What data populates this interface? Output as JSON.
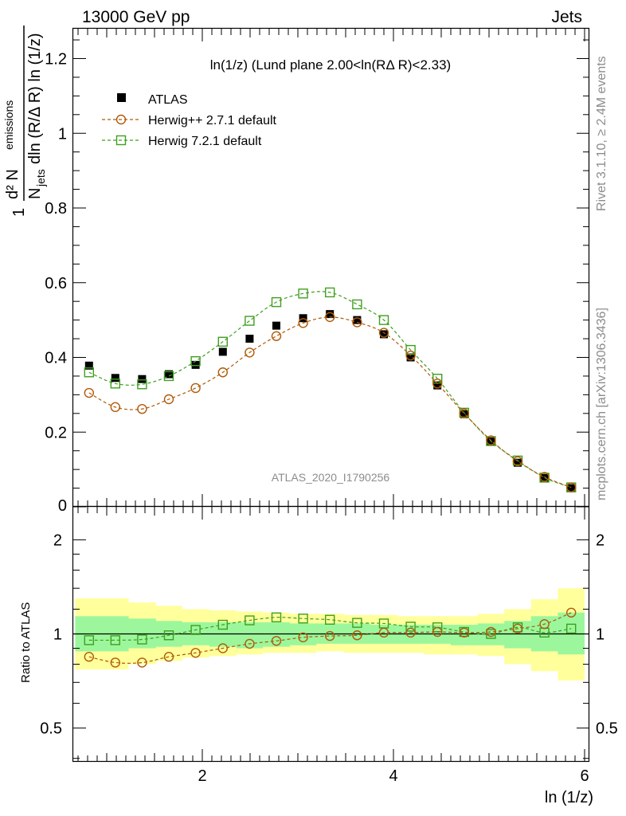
{
  "header": {
    "left": "13000 GeV pp",
    "right": "Jets"
  },
  "side_labels": {
    "rivet": "Rivet 3.1.10, ≥ 2.4M events",
    "mcplots": "mcplots.cern.ch [arXiv:1306.3436]"
  },
  "main_title": "ln(1/z) (Lund plane 2.00<ln(RΔ R)<2.33)",
  "watermark": "ATLAS_2020_I1790256",
  "ylabel_main": {
    "num": "d² N",
    "num_sub": "emissions",
    "one": "1",
    "den": "N",
    "den_sub": "jets",
    "den_rest": "dln (R/Δ R) ln (1/z)"
  },
  "ratio_ylabel": "Ratio to ATLAS",
  "xlabel": "ln (1/z)",
  "legend": [
    "ATLAS",
    "Herwig++ 2.7.1 default",
    "Herwig 7.2.1 default"
  ],
  "colors": {
    "atlas": "#000000",
    "herwigpp": "#b05a08",
    "herwig7": "#3f9f1f",
    "band_inner": "#9cf79c",
    "band_outer": "#ffff9c"
  },
  "chart_data": [
    {
      "type": "scatter",
      "panel": "main",
      "xlim": [
        0.65,
        6.05
      ],
      "ylim": [
        0,
        1.28
      ],
      "x_ticks": [
        2,
        4,
        6
      ],
      "y_ticks": [
        0.2,
        0.4,
        0.6,
        0.8,
        1,
        1.2
      ],
      "y_tick_labels": [
        "0.2",
        "0.4",
        "0.6",
        "0.8",
        "1",
        "1.2"
      ],
      "x_edges": [
        0.67,
        0.955,
        1.23,
        1.515,
        1.79,
        2.075,
        2.355,
        2.635,
        2.915,
        3.195,
        3.48,
        3.76,
        4.04,
        4.32,
        4.6,
        4.88,
        5.16,
        5.44,
        5.72,
        6.0
      ],
      "x": [
        0.815,
        1.09,
        1.37,
        1.65,
        1.93,
        2.215,
        2.495,
        2.775,
        3.055,
        3.335,
        3.62,
        3.9,
        4.18,
        4.46,
        4.74,
        5.02,
        5.3,
        5.58,
        5.86
      ],
      "series": [
        {
          "name": "ATLAS",
          "values": [
            0.378,
            0.345,
            0.342,
            0.355,
            0.38,
            0.415,
            0.45,
            0.485,
            0.505,
            0.516,
            0.5,
            0.462,
            0.4,
            0.325,
            0.248,
            0.175,
            0.118,
            0.077,
            0.05
          ]
        },
        {
          "name": "Herwig++ 2.7.1 default",
          "values": [
            0.305,
            0.267,
            0.262,
            0.288,
            0.318,
            0.36,
            0.413,
            0.457,
            0.492,
            0.508,
            0.494,
            0.466,
            0.405,
            0.33,
            0.25,
            0.178,
            0.122,
            0.08,
            0.052
          ]
        },
        {
          "name": "Herwig 7.2.1 default",
          "values": [
            0.36,
            0.33,
            0.328,
            0.35,
            0.39,
            0.442,
            0.498,
            0.548,
            0.571,
            0.574,
            0.542,
            0.5,
            0.42,
            0.343,
            0.252,
            0.176,
            0.124,
            0.078,
            0.052
          ]
        }
      ]
    },
    {
      "type": "line",
      "panel": "ratio",
      "ylim": [
        0.39,
        2.55
      ],
      "log_y": true,
      "y_ticks": [
        0.5,
        1,
        2
      ],
      "y_tick_labels": [
        "0.5",
        "1",
        "2"
      ],
      "xlabel": "ln (1/z)",
      "ylabel": "Ratio to ATLAS",
      "band_inner": {
        "lo": [
          0.88,
          0.88,
          0.9,
          0.91,
          0.92,
          0.91,
          0.9,
          0.91,
          0.92,
          0.93,
          0.93,
          0.93,
          0.93,
          0.93,
          0.92,
          0.92,
          0.9,
          0.88,
          0.86
        ],
        "hi": [
          1.14,
          1.14,
          1.12,
          1.1,
          1.09,
          1.09,
          1.09,
          1.09,
          1.08,
          1.08,
          1.08,
          1.07,
          1.07,
          1.07,
          1.07,
          1.08,
          1.1,
          1.14,
          1.17
        ]
      },
      "band_outer": {
        "lo": [
          0.77,
          0.77,
          0.8,
          0.82,
          0.84,
          0.85,
          0.86,
          0.87,
          0.87,
          0.88,
          0.87,
          0.87,
          0.87,
          0.86,
          0.86,
          0.85,
          0.8,
          0.76,
          0.71
        ]
      },
      "band_outer_hi": [
        1.3,
        1.3,
        1.26,
        1.23,
        1.2,
        1.19,
        1.18,
        1.17,
        1.16,
        1.16,
        1.15,
        1.15,
        1.14,
        1.14,
        1.14,
        1.16,
        1.2,
        1.29,
        1.4
      ],
      "series": [
        {
          "name": "Herwig++ 2.7.1 default",
          "values": [
            0.845,
            0.81,
            0.81,
            0.845,
            0.87,
            0.9,
            0.93,
            0.95,
            0.975,
            0.985,
            0.99,
            1.01,
            1.01,
            1.015,
            1.01,
            1.015,
            1.04,
            1.075,
            1.17
          ]
        },
        {
          "name": "Herwig 7.2.1 default",
          "values": [
            0.955,
            0.955,
            0.96,
            0.99,
            1.03,
            1.07,
            1.105,
            1.13,
            1.12,
            1.11,
            1.085,
            1.08,
            1.055,
            1.05,
            1.015,
            1.0,
            1.05,
            1.01,
            1.04
          ]
        }
      ]
    }
  ]
}
